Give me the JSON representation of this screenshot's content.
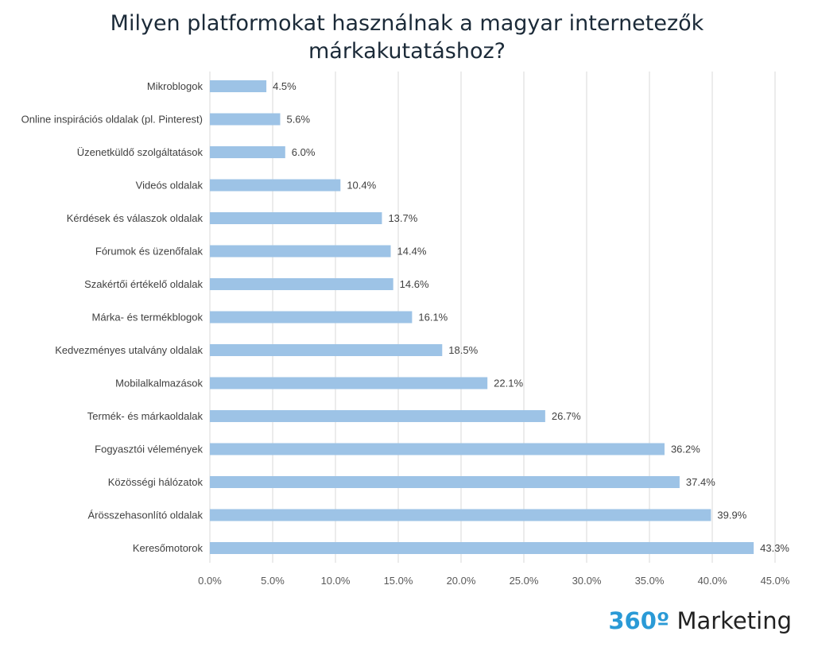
{
  "title_lines": [
    "Milyen platformokat használnak a magyar internetezők",
    "márkakutatáshoz?"
  ],
  "brand": {
    "number": "360º",
    "name": "Marketing",
    "accent_color": "#2a9ad6"
  },
  "chart_data": {
    "type": "bar",
    "orientation": "horizontal",
    "title": "Milyen platformokat használnak a magyar internetezők márkakutatáshoz?",
    "categories": [
      "Mikroblogok",
      "Online inspirációs oldalak (pl. Pinterest)",
      "Üzenetküldő szolgáltatások",
      "Videós oldalak",
      "Kérdések és válaszok oldalak",
      "Fórumok és üzenőfalak",
      "Szakértői értékelő oldalak",
      "Márka- és termékblogok",
      "Kedvezményes utalvány oldalak",
      "Mobilalkalmazások",
      "Termék- és márkaoldalak",
      "Fogyasztói vélemények",
      "Közösségi hálózatok",
      "Árösszehasonlító oldalak",
      "Keresőmotorok"
    ],
    "values": [
      4.5,
      5.6,
      6.0,
      10.4,
      13.7,
      14.4,
      14.6,
      16.1,
      18.5,
      22.1,
      26.7,
      36.2,
      37.4,
      39.9,
      43.3
    ],
    "value_labels": [
      "4.5%",
      "5.6%",
      "6.0%",
      "10.4%",
      "13.7%",
      "14.4%",
      "14.6%",
      "16.1%",
      "18.5%",
      "22.1%",
      "26.7%",
      "36.2%",
      "37.4%",
      "39.9%",
      "43.3%"
    ],
    "xlim": [
      0,
      45
    ],
    "xticks": [
      0,
      5,
      10,
      15,
      20,
      25,
      30,
      35,
      40,
      45
    ],
    "xtick_labels": [
      "0.0%",
      "5.0%",
      "10.0%",
      "15.0%",
      "20.0%",
      "25.0%",
      "30.0%",
      "35.0%",
      "40.0%",
      "45.0%"
    ],
    "grid": true,
    "bar_color": "#9dc3e6",
    "grid_color": "#d9d9d9"
  }
}
